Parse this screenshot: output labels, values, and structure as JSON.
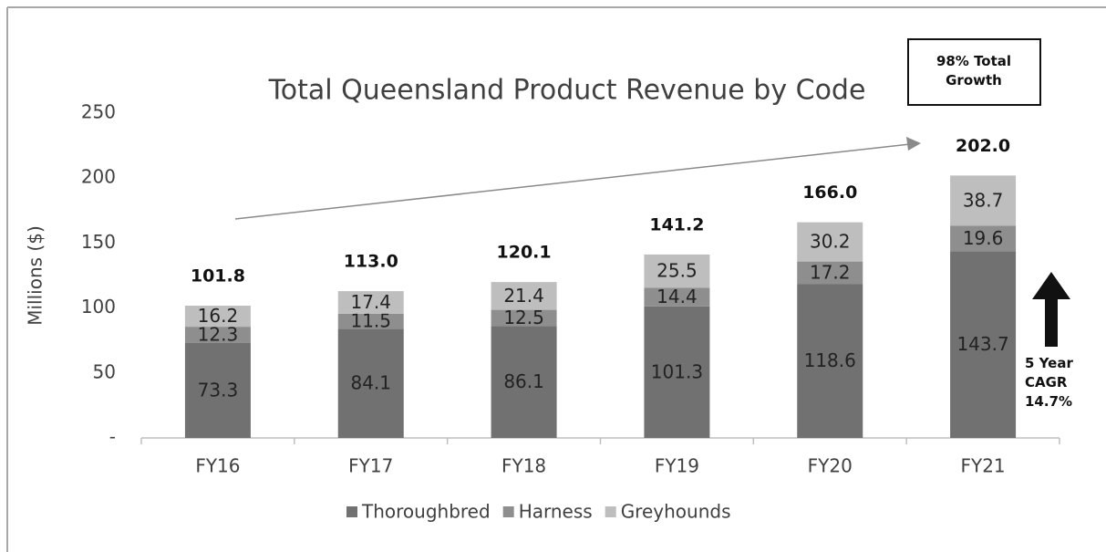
{
  "chart_data": {
    "type": "stacked_bar",
    "title": "Total Queensland Product Revenue by Code",
    "y_label": "Millions ($)",
    "categories": [
      "FY16",
      "FY17",
      "FY18",
      "FY19",
      "FY20",
      "FY21"
    ],
    "series": [
      {
        "name": "Thoroughbred",
        "color": "#717171",
        "values": [
          73.3,
          84.1,
          86.1,
          101.3,
          118.6,
          143.7
        ]
      },
      {
        "name": "Harness",
        "color": "#8e8e8e",
        "values": [
          12.3,
          11.5,
          12.5,
          14.4,
          17.2,
          19.6
        ]
      },
      {
        "name": "Greyhounds",
        "color": "#bebebe",
        "values": [
          16.2,
          17.4,
          21.4,
          25.5,
          30.2,
          38.7
        ]
      }
    ],
    "totals": {
      "values": [
        101.8,
        113,
        120.1,
        141.2,
        166,
        202
      ],
      "value_labels": [
        "101.8",
        "113.0",
        "120.1",
        "141.2",
        "166.0",
        "202.0"
      ]
    },
    "ylim": [
      0,
      250
    ],
    "yticks": [
      {
        "value": 0,
        "label": "-"
      },
      50,
      100,
      150,
      200,
      250
    ],
    "grid": false,
    "legend": "bottom",
    "annotations": [
      "98% Total Growth",
      "5 Year CAGR 14.7%"
    ]
  }
}
